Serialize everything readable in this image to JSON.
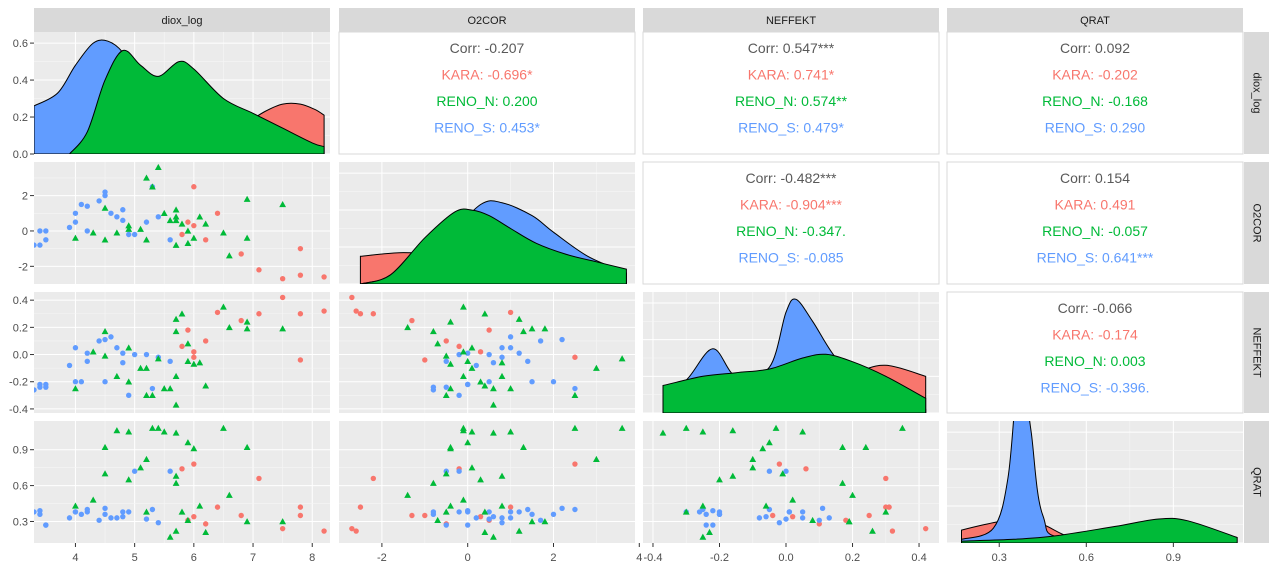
{
  "chart_data": {
    "type": "scatter-matrix",
    "variables": [
      "diox_log",
      "O2COR",
      "NEFFEKT",
      "QRAT"
    ],
    "groups": [
      {
        "name": "KARA",
        "color": "#F8766D",
        "shape": "circle"
      },
      {
        "name": "RENO_N",
        "color": "#00BA38",
        "shape": "triangle"
      },
      {
        "name": "RENO_S",
        "color": "#619CFF",
        "shape": "circle"
      }
    ],
    "overall_color": "#595959",
    "axes": {
      "diox_log": {
        "range": [
          3.3,
          8.3
        ],
        "ticks": [
          4,
          5,
          6,
          7,
          8
        ],
        "tick_labels": [
          "4",
          "5",
          "6",
          "7",
          "8"
        ]
      },
      "O2COR": {
        "range": [
          -3.0,
          3.9
        ],
        "ticks": [
          -2,
          0,
          2,
          4
        ],
        "tick_labels": [
          "-2",
          "0",
          "2",
          "4"
        ]
      },
      "NEFFEKT": {
        "range": [
          -0.43,
          0.46
        ],
        "ticks": [
          -0.4,
          -0.2,
          0.0,
          0.2,
          0.4
        ],
        "tick_labels": [
          "-0.4",
          "-0.2",
          "0.0",
          "0.2",
          "0.4"
        ]
      },
      "QRAT": {
        "range": [
          0.12,
          1.14
        ],
        "ticks": [
          0.3,
          0.6,
          0.9
        ],
        "tick_labels": [
          "0.3",
          "0.6",
          "0.9"
        ]
      },
      "density_y": {
        "range": [
          0,
          0.66
        ],
        "ticks": [
          0.0,
          0.2,
          0.4,
          0.6
        ],
        "tick_labels": [
          "0.0",
          "0.2",
          "0.4",
          "0.6"
        ]
      }
    },
    "correlations": [
      {
        "x": "O2COR",
        "y": "diox_log",
        "lines": [
          {
            "label": "Corr: -0.207",
            "group": "overall"
          },
          {
            "label": "KARA: -0.696*",
            "group": "KARA"
          },
          {
            "label": "RENO_N: 0.200",
            "group": "RENO_N"
          },
          {
            "label": "RENO_S: 0.453*",
            "group": "RENO_S"
          }
        ]
      },
      {
        "x": "NEFFEKT",
        "y": "diox_log",
        "lines": [
          {
            "label": "Corr: 0.547***",
            "group": "overall"
          },
          {
            "label": "KARA: 0.741*",
            "group": "KARA"
          },
          {
            "label": "RENO_N: 0.574**",
            "group": "RENO_N"
          },
          {
            "label": "RENO_S: 0.479*",
            "group": "RENO_S"
          }
        ]
      },
      {
        "x": "QRAT",
        "y": "diox_log",
        "lines": [
          {
            "label": "Corr: 0.092",
            "group": "overall"
          },
          {
            "label": "KARA: -0.202",
            "group": "KARA"
          },
          {
            "label": "RENO_N: -0.168",
            "group": "RENO_N"
          },
          {
            "label": "RENO_S: 0.290",
            "group": "RENO_S"
          }
        ]
      },
      {
        "x": "NEFFEKT",
        "y": "O2COR",
        "lines": [
          {
            "label": "Corr: -0.482***",
            "group": "overall"
          },
          {
            "label": "KARA: -0.904***",
            "group": "KARA"
          },
          {
            "label": "RENO_N: -0.347.",
            "group": "RENO_N"
          },
          {
            "label": "RENO_S: -0.085",
            "group": "RENO_S"
          }
        ]
      },
      {
        "x": "QRAT",
        "y": "O2COR",
        "lines": [
          {
            "label": "Corr: 0.154",
            "group": "overall"
          },
          {
            "label": "KARA: 0.491",
            "group": "KARA"
          },
          {
            "label": "RENO_N: -0.057",
            "group": "RENO_N"
          },
          {
            "label": "RENO_S: 0.641***",
            "group": "RENO_S"
          }
        ]
      },
      {
        "x": "QRAT",
        "y": "NEFFEKT",
        "lines": [
          {
            "label": "Corr: -0.066",
            "group": "overall"
          },
          {
            "label": "KARA: -0.174",
            "group": "KARA"
          },
          {
            "label": "RENO_N: 0.003",
            "group": "RENO_N"
          },
          {
            "label": "RENO_S: -0.396.",
            "group": "RENO_S"
          }
        ]
      }
    ],
    "densities": {
      "diox_log": {
        "KARA": [
          [
            3.3,
            0.0
          ],
          [
            5.8,
            0.03
          ],
          [
            6.5,
            0.1
          ],
          [
            6.9,
            0.17
          ],
          [
            7.2,
            0.23
          ],
          [
            7.5,
            0.27
          ],
          [
            7.8,
            0.27
          ],
          [
            8.05,
            0.24
          ],
          [
            8.2,
            0.21
          ]
        ],
        "RENO_S": [
          [
            3.3,
            0.26
          ],
          [
            3.7,
            0.33
          ],
          [
            4.0,
            0.48
          ],
          [
            4.3,
            0.6
          ],
          [
            4.55,
            0.61
          ],
          [
            4.8,
            0.55
          ],
          [
            5.1,
            0.4
          ],
          [
            5.4,
            0.3
          ],
          [
            5.7,
            0.26
          ],
          [
            6.0,
            0.2
          ],
          [
            6.5,
            0.1
          ],
          [
            7.0,
            0.04
          ],
          [
            7.5,
            0.01
          ],
          [
            8.2,
            0.0
          ]
        ],
        "RENO_N": [
          [
            3.9,
            0.0
          ],
          [
            4.2,
            0.12
          ],
          [
            4.5,
            0.4
          ],
          [
            4.8,
            0.56
          ],
          [
            5.1,
            0.48
          ],
          [
            5.4,
            0.42
          ],
          [
            5.75,
            0.5
          ],
          [
            6.0,
            0.46
          ],
          [
            6.5,
            0.3
          ],
          [
            7.0,
            0.22
          ],
          [
            7.5,
            0.14
          ],
          [
            8.0,
            0.06
          ],
          [
            8.2,
            0.04
          ]
        ]
      },
      "O2COR": {
        "KARA": [
          [
            -2.5,
            0.15
          ],
          [
            -1.5,
            0.17
          ],
          [
            -0.6,
            0.15
          ],
          [
            0.2,
            0.1
          ],
          [
            1.0,
            0.04
          ],
          [
            2.0,
            0.01
          ],
          [
            3.7,
            0.0
          ]
        ],
        "RENO_S": [
          [
            -2.5,
            0.0
          ],
          [
            -1.5,
            0.06
          ],
          [
            -0.5,
            0.25
          ],
          [
            0.3,
            0.43
          ],
          [
            0.8,
            0.44
          ],
          [
            1.5,
            0.37
          ],
          [
            2.0,
            0.28
          ],
          [
            2.8,
            0.15
          ],
          [
            3.7,
            0.06
          ]
        ],
        "RENO_N": [
          [
            -2.5,
            0.0
          ],
          [
            -1.8,
            0.05
          ],
          [
            -1.0,
            0.25
          ],
          [
            -0.3,
            0.39
          ],
          [
            0.1,
            0.4
          ],
          [
            0.5,
            0.37
          ],
          [
            1.0,
            0.3
          ],
          [
            1.6,
            0.22
          ],
          [
            2.3,
            0.16
          ],
          [
            3.0,
            0.12
          ],
          [
            3.7,
            0.08
          ]
        ]
      },
      "NEFFEKT": {
        "KARA": [
          [
            -0.37,
            0.12
          ],
          [
            -0.2,
            0.1
          ],
          [
            0.0,
            0.14
          ],
          [
            0.2,
            0.22
          ],
          [
            0.3,
            0.26
          ],
          [
            0.42,
            0.2
          ]
        ],
        "RENO_S": [
          [
            -0.37,
            0.12
          ],
          [
            -0.3,
            0.18
          ],
          [
            -0.22,
            0.35
          ],
          [
            -0.15,
            0.2
          ],
          [
            -0.05,
            0.25
          ],
          [
            0.0,
            0.55
          ],
          [
            0.03,
            0.62
          ],
          [
            0.08,
            0.5
          ],
          [
            0.15,
            0.3
          ],
          [
            0.25,
            0.12
          ],
          [
            0.35,
            0.04
          ],
          [
            0.42,
            0.02
          ]
        ],
        "RENO_N": [
          [
            -0.37,
            0.15
          ],
          [
            -0.25,
            0.2
          ],
          [
            -0.15,
            0.22
          ],
          [
            -0.05,
            0.24
          ],
          [
            0.05,
            0.3
          ],
          [
            0.12,
            0.32
          ],
          [
            0.2,
            0.28
          ],
          [
            0.3,
            0.2
          ],
          [
            0.42,
            0.08
          ]
        ]
      },
      "QRAT": {
        "KARA": [
          [
            0.17,
            0.07
          ],
          [
            0.25,
            0.1
          ],
          [
            0.32,
            0.12
          ],
          [
            0.37,
            0.12
          ],
          [
            0.45,
            0.1
          ],
          [
            0.55,
            0.03
          ],
          [
            0.7,
            0.01
          ],
          [
            1.12,
            0.0
          ]
        ],
        "RENO_S": [
          [
            0.17,
            0.02
          ],
          [
            0.28,
            0.08
          ],
          [
            0.33,
            0.35
          ],
          [
            0.36,
            0.85
          ],
          [
            0.38,
            0.92
          ],
          [
            0.41,
            0.6
          ],
          [
            0.45,
            0.15
          ],
          [
            0.55,
            0.02
          ],
          [
            1.12,
            0.0
          ]
        ],
        "RENO_N": [
          [
            0.17,
            0.01
          ],
          [
            0.35,
            0.02
          ],
          [
            0.5,
            0.04
          ],
          [
            0.7,
            0.09
          ],
          [
            0.85,
            0.13
          ],
          [
            0.95,
            0.12
          ],
          [
            1.12,
            0.03
          ]
        ]
      }
    },
    "points": [
      {
        "g": "KARA",
        "d": 6.8,
        "o": -1.3,
        "n": 0.25,
        "q": 0.35
      },
      {
        "g": "KARA",
        "d": 7.5,
        "o": -2.7,
        "n": 0.42,
        "q": 0.24
      },
      {
        "g": "KARA",
        "d": 7.8,
        "o": -1.0,
        "n": -0.04,
        "q": 0.35
      },
      {
        "g": "KARA",
        "d": 8.2,
        "o": -2.6,
        "n": 0.32,
        "q": 0.22
      },
      {
        "g": "KARA",
        "d": 7.1,
        "o": -2.2,
        "n": 0.3,
        "q": 0.66
      },
      {
        "g": "KARA",
        "d": 6.0,
        "o": 0.3,
        "n": 0.02,
        "q": 0.34
      },
      {
        "g": "KARA",
        "d": 6.4,
        "o": 1.0,
        "n": 0.31,
        "q": 0.42
      },
      {
        "g": "KARA",
        "d": 5.9,
        "o": 0.5,
        "n": 0.18,
        "q": 0.31
      },
      {
        "g": "KARA",
        "d": 5.8,
        "o": -0.2,
        "n": 0.06,
        "q": 0.74
      },
      {
        "g": "KARA",
        "d": 6.2,
        "o": -0.5,
        "n": 0.1,
        "q": 0.28
      },
      {
        "g": "KARA",
        "d": 7.8,
        "o": -2.5,
        "n": 0.3,
        "q": 0.42
      },
      {
        "g": "KARA",
        "d": 6.0,
        "o": 2.5,
        "n": -0.02,
        "q": 0.78
      },
      {
        "g": "RENO_S",
        "d": 3.4,
        "o": -0.8,
        "n": -0.24,
        "q": 0.36
      },
      {
        "g": "RENO_S",
        "d": 3.5,
        "o": -0.5,
        "n": -0.24,
        "q": 0.27
      },
      {
        "g": "RENO_S",
        "d": 3.4,
        "o": 0.0,
        "n": -0.22,
        "q": 0.39
      },
      {
        "g": "RENO_S",
        "d": 3.5,
        "o": 0.0,
        "n": -0.22,
        "q": 0.27
      },
      {
        "g": "RENO_S",
        "d": 3.3,
        "o": -0.8,
        "n": -0.26,
        "q": 0.38
      },
      {
        "g": "RENO_S",
        "d": 4.0,
        "o": 0.5,
        "n": -0.2,
        "q": 0.38
      },
      {
        "g": "RENO_S",
        "d": 4.1,
        "o": 1.5,
        "n": -0.2,
        "q": 0.36
      },
      {
        "g": "RENO_S",
        "d": 4.0,
        "o": 1.0,
        "n": 0.05,
        "q": 0.38
      },
      {
        "g": "RENO_S",
        "d": 4.2,
        "o": 0.0,
        "n": 0.01,
        "q": 0.38
      },
      {
        "g": "RENO_S",
        "d": 4.5,
        "o": 2.2,
        "n": 0.11,
        "q": 0.41
      },
      {
        "g": "RENO_S",
        "d": 4.6,
        "o": 1.0,
        "n": 0.13,
        "q": 0.33
      },
      {
        "g": "RENO_S",
        "d": 4.7,
        "o": 0.8,
        "n": 0.05,
        "q": 0.33
      },
      {
        "g": "RENO_S",
        "d": 4.8,
        "o": 1.2,
        "n": 0.01,
        "q": 0.38
      },
      {
        "g": "RENO_S",
        "d": 5.0,
        "o": -0.2,
        "n": 0.0,
        "q": 0.72
      },
      {
        "g": "RENO_S",
        "d": 5.2,
        "o": 0.5,
        "n": 0.0,
        "q": 0.32
      },
      {
        "g": "RENO_S",
        "d": 5.3,
        "o": 2.5,
        "n": -0.25,
        "q": 0.4
      },
      {
        "g": "RENO_S",
        "d": 5.6,
        "o": -0.5,
        "n": -0.05,
        "q": 0.72
      },
      {
        "g": "RENO_S",
        "d": 4.4,
        "o": 1.7,
        "n": 0.1,
        "q": 0.31
      },
      {
        "g": "RENO_S",
        "d": 4.9,
        "o": -0.2,
        "n": -0.3,
        "q": 0.38
      },
      {
        "g": "RENO_S",
        "d": 4.2,
        "o": 1.4,
        "n": -0.05,
        "q": 0.4
      },
      {
        "g": "RENO_S",
        "d": 4.5,
        "o": 2.0,
        "n": -0.2,
        "q": 0.36
      },
      {
        "g": "RENO_S",
        "d": 4.8,
        "o": 0.6,
        "n": -0.06,
        "q": 0.34
      },
      {
        "g": "RENO_S",
        "d": 5.4,
        "o": 0.8,
        "n": -0.02,
        "q": 0.29
      },
      {
        "g": "RENO_S",
        "d": 3.9,
        "o": 0.2,
        "n": -0.08,
        "q": 0.33
      },
      {
        "g": "RENO_N",
        "d": 5.4,
        "o": 3.6,
        "n": -0.03,
        "q": 1.08
      },
      {
        "g": "RENO_N",
        "d": 5.9,
        "o": 0.0,
        "n": -0.05,
        "q": 0.96
      },
      {
        "g": "RENO_N",
        "d": 5.5,
        "o": 1.0,
        "n": -0.25,
        "q": 1.05
      },
      {
        "g": "RENO_N",
        "d": 5.3,
        "o": 2.5,
        "n": -0.3,
        "q": 1.08
      },
      {
        "g": "RENO_N",
        "d": 6.9,
        "o": 1.8,
        "n": 0.19,
        "q": 0.3
      },
      {
        "g": "RENO_N",
        "d": 7.5,
        "o": 1.5,
        "n": 0.19,
        "q": 0.3
      },
      {
        "g": "RENO_N",
        "d": 6.1,
        "o": 0.8,
        "n": -0.06,
        "q": 0.43
      },
      {
        "g": "RENO_N",
        "d": 6.2,
        "o": 0.4,
        "n": -0.23,
        "q": 0.21
      },
      {
        "g": "RENO_N",
        "d": 6.6,
        "o": -1.4,
        "n": 0.2,
        "q": 0.52
      },
      {
        "g": "RENO_N",
        "d": 5.7,
        "o": 1.2,
        "n": 0.26,
        "q": 0.22
      },
      {
        "g": "RENO_N",
        "d": 6.0,
        "o": -0.4,
        "n": -0.07,
        "q": 0.91
      },
      {
        "g": "RENO_N",
        "d": 5.8,
        "o": 0.4,
        "n": 0.3,
        "q": 0.38
      },
      {
        "g": "RENO_N",
        "d": 5.2,
        "o": -0.5,
        "n": -0.3,
        "q": 0.38
      },
      {
        "g": "RENO_N",
        "d": 4.9,
        "o": 0.1,
        "n": 0.05,
        "q": 1.05
      },
      {
        "g": "RENO_N",
        "d": 4.5,
        "o": -0.5,
        "n": -0.01,
        "q": 0.7
      },
      {
        "g": "RENO_N",
        "d": 4.0,
        "o": -0.4,
        "n": -0.25,
        "q": 0.43
      },
      {
        "g": "RENO_N",
        "d": 4.9,
        "o": 0.3,
        "n": -0.2,
        "q": 0.65
      },
      {
        "g": "RENO_N",
        "d": 5.6,
        "o": 0.6,
        "n": -0.25,
        "q": 0.17
      },
      {
        "g": "RENO_N",
        "d": 6.5,
        "o": -0.1,
        "n": 0.35,
        "q": 1.08
      },
      {
        "g": "RENO_N",
        "d": 5.7,
        "o": 0.6,
        "n": -0.37,
        "q": 1.04
      },
      {
        "g": "RENO_N",
        "d": 4.5,
        "o": 1.3,
        "n": 0.17,
        "q": 0.92
      },
      {
        "g": "RENO_N",
        "d": 5.1,
        "o": 0.1,
        "n": -0.1,
        "q": 0.75
      },
      {
        "g": "RENO_N",
        "d": 4.7,
        "o": -0.1,
        "n": -0.16,
        "q": 1.06
      },
      {
        "g": "RENO_N",
        "d": 5.7,
        "o": -0.8,
        "n": 0.17,
        "q": 0.62
      },
      {
        "g": "RENO_N",
        "d": 4.3,
        "o": -0.1,
        "n": 0.02,
        "q": 0.48
      },
      {
        "g": "RENO_N",
        "d": 5.7,
        "o": 0.8,
        "n": -0.16,
        "q": 0.68
      },
      {
        "g": "RENO_N",
        "d": 6.9,
        "o": -0.4,
        "n": 0.24,
        "q": 0.92
      },
      {
        "g": "RENO_N",
        "d": 5.2,
        "o": 3.0,
        "n": -0.1,
        "q": 0.82
      },
      {
        "g": "RENO_N",
        "d": 5.9,
        "o": -0.7,
        "n": 0.08,
        "q": 0.31
      }
    ]
  }
}
